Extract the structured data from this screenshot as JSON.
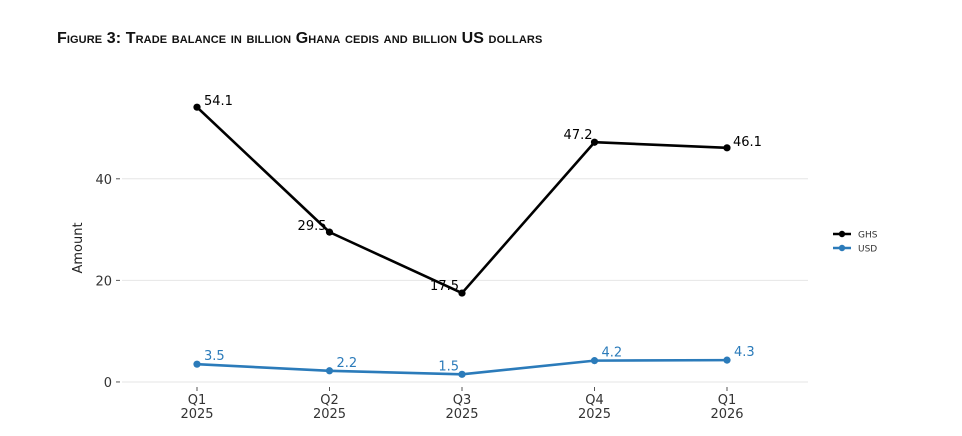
{
  "figure": {
    "title": "Figure 3: Trade balance in billion Ghana cedis and billion US dollars"
  },
  "chart_data": {
    "type": "line",
    "categories": [
      "Q1\n2025",
      "Q2\n2025",
      "Q3\n2025",
      "Q4\n2025",
      "Q1\n2026"
    ],
    "series": [
      {
        "name": "GHS",
        "values": [
          54.1,
          29.5,
          17.5,
          47.2,
          46.1
        ],
        "color": "#000000",
        "labels": [
          "54.1",
          "29.5",
          "17.5",
          "47.2",
          "46.1"
        ]
      },
      {
        "name": "USD",
        "values": [
          3.5,
          2.2,
          1.5,
          4.2,
          4.3
        ],
        "color": "#2b7bba",
        "labels": [
          "3.5",
          "2.2",
          "1.5",
          "4.2",
          "4.3"
        ]
      }
    ],
    "ylabel": "Amount",
    "xlabel": "",
    "yticks": [
      0,
      20,
      40
    ],
    "ytick_labels": [
      "0",
      "20",
      "40"
    ],
    "ylim": [
      -0.6,
      56.5
    ],
    "grid": "horizontal",
    "legend_position": "right"
  }
}
